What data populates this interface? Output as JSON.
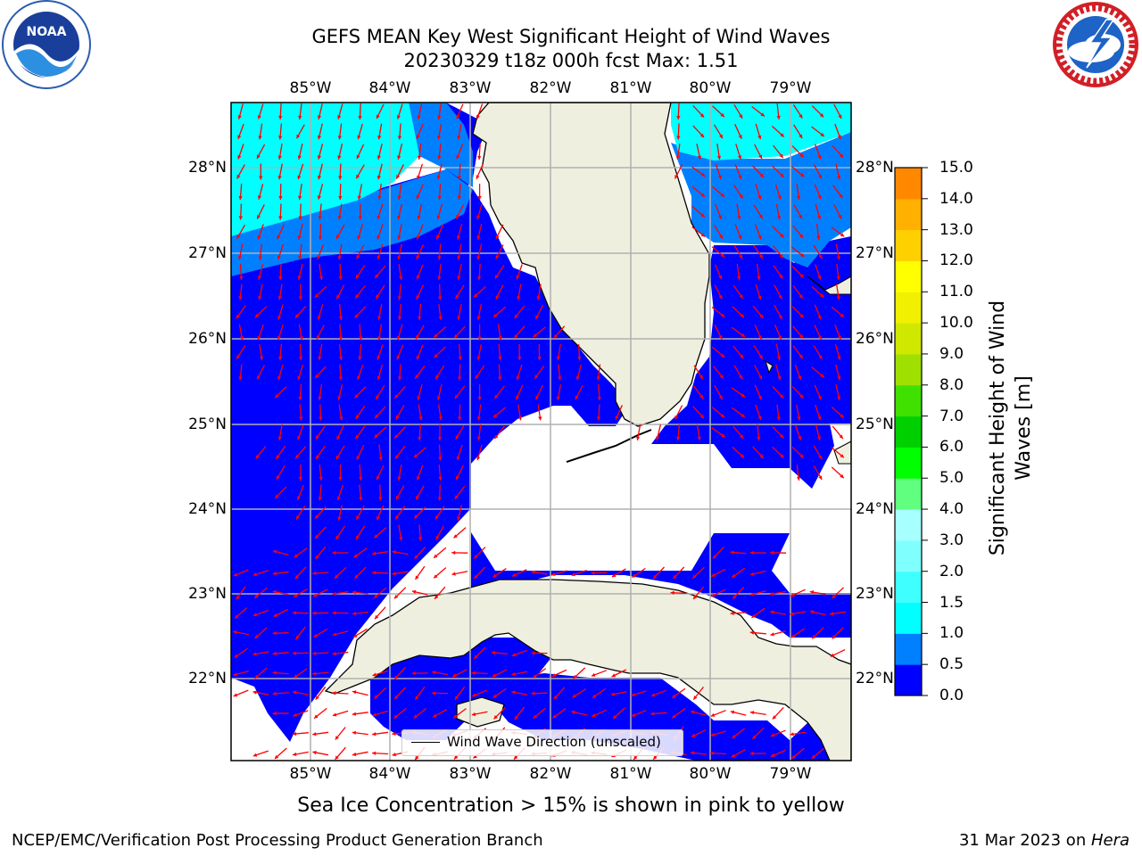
{
  "title": {
    "line1": "GEFS MEAN Key West Significant Height of Wind Waves",
    "line2": "20230329 t18z 000h fcst   Max: 1.51"
  },
  "logos": {
    "noaa": {
      "text": "NOAA",
      "icon": "noaa-logo-icon"
    },
    "nws": {
      "ring_text": "NATIONAL WEATHER SERVICE",
      "icon": "nws-logo-icon"
    }
  },
  "map": {
    "lon_labels": [
      "85°W",
      "84°W",
      "83°W",
      "82°W",
      "81°W",
      "80°W",
      "79°W"
    ],
    "lat_labels": [
      "28°N",
      "27°N",
      "26°N",
      "25°N",
      "24°N",
      "23°N",
      "22°N"
    ],
    "legend_label": "Wind Wave Direction (unscaled)",
    "colors": {
      "land": "#efefdf",
      "coast": "#000000",
      "grid": "#b0b0b0",
      "arrow": "#ff0000",
      "no_data": "#ffffff"
    }
  },
  "colorbar": {
    "title": "Significant Height of Wind Waves [m]",
    "title_line1": "Significant Height of Wind",
    "title_line2": "Waves [m]",
    "ticks": [
      "15.0",
      "14.0",
      "13.0",
      "12.0",
      "11.0",
      "10.0",
      "9.0",
      "8.0",
      "7.0",
      "6.0",
      "5.0",
      "4.0",
      "3.0",
      "2.0",
      "1.5",
      "1.0",
      "0.5",
      "0.0"
    ],
    "colors_bottom_to_top": [
      "#0000ff",
      "#0080ff",
      "#00ffff",
      "#40ffff",
      "#80ffff",
      "#a8ffff",
      "#60ff80",
      "#00ff00",
      "#00d000",
      "#40e000",
      "#a0e000",
      "#d0e800",
      "#f0f000",
      "#ffff00",
      "#ffd000",
      "#ffb000",
      "#ff8800",
      "#ff4400",
      "#ff0000"
    ]
  },
  "note": "Sea Ice Concentration > 15% is shown in pink to yellow",
  "footer": {
    "left": "NCEP/EMC/Verification Post Processing Product Generation Branch",
    "right_prefix": "31 Mar 2023 on ",
    "right_host": "Hera"
  }
}
